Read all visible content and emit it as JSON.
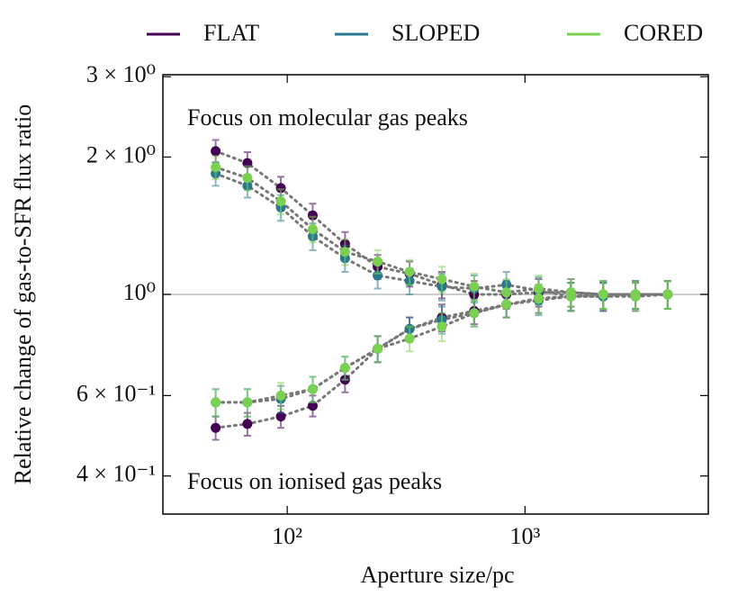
{
  "chart_data": {
    "type": "scatter",
    "xlabel": "Aperture size/pc",
    "ylabel": "Relative change of gas-to-SFR flux ratio",
    "annotations": [
      "Focus on molecular gas peaks",
      "Focus on ionised gas peaks"
    ],
    "log_x": true,
    "log_y": true,
    "xlim": [
      30,
      5900
    ],
    "ylim": [
      0.33,
      3.03
    ],
    "xticks": [
      {
        "value": 100,
        "label": "10²"
      },
      {
        "value": 1000,
        "label": "10³"
      }
    ],
    "yticks": [
      {
        "value": 0.4,
        "label": "4 × 10⁻¹"
      },
      {
        "value": 0.6,
        "label": "6 × 10⁻¹"
      },
      {
        "value": 1,
        "label": "10⁰"
      },
      {
        "value": 2,
        "label": "2 × 10⁰"
      },
      {
        "value": 3,
        "label": "3 × 10⁰"
      }
    ],
    "hline": 1,
    "legend": "top-outside",
    "x": [
      50,
      68,
      94,
      128,
      175,
      240,
      327,
      447,
      611,
      835,
      1141,
      1560,
      2132,
      2914,
      3982
    ],
    "series": [
      {
        "name": "FLAT",
        "color": "#440154",
        "molecular": {
          "values": [
            2.06,
            1.94,
            1.71,
            1.49,
            1.29,
            1.15,
            1.11,
            1.05,
            1.0,
            1.0,
            1.01,
            1.01,
            1.0,
            1.0,
            1.0
          ],
          "errors": [
            0.12,
            0.11,
            0.1,
            0.09,
            0.08,
            0.07,
            0.07,
            0.07,
            0.07,
            0.07,
            0.07,
            0.07,
            0.07,
            0.07,
            0.07
          ]
        },
        "ionised": {
          "values": [
            0.51,
            0.52,
            0.54,
            0.57,
            0.65,
            0.76,
            0.84,
            0.89,
            0.92,
            0.95,
            0.98,
            0.99,
            0.99,
            0.99,
            1.0
          ],
          "errors": [
            0.03,
            0.03,
            0.03,
            0.03,
            0.04,
            0.05,
            0.05,
            0.06,
            0.06,
            0.06,
            0.07,
            0.07,
            0.07,
            0.07,
            0.07
          ]
        }
      },
      {
        "name": "SLOPED",
        "color": "#2a788e",
        "molecular": {
          "values": [
            1.84,
            1.73,
            1.55,
            1.34,
            1.2,
            1.1,
            1.07,
            1.04,
            1.03,
            1.05,
            1.02,
            0.99,
            1.0,
            1.0,
            1.0
          ],
          "errors": [
            0.11,
            0.1,
            0.1,
            0.09,
            0.08,
            0.07,
            0.07,
            0.07,
            0.07,
            0.07,
            0.07,
            0.07,
            0.07,
            0.07,
            0.07
          ]
        },
        "ionised": {
          "values": [
            0.58,
            0.58,
            0.59,
            0.62,
            0.69,
            0.76,
            0.84,
            0.88,
            0.91,
            0.95,
            0.97,
            0.99,
            0.99,
            1.0,
            1.0
          ],
          "errors": [
            0.04,
            0.04,
            0.04,
            0.04,
            0.04,
            0.05,
            0.05,
            0.06,
            0.06,
            0.06,
            0.07,
            0.07,
            0.07,
            0.07,
            0.07
          ]
        }
      },
      {
        "name": "CORED",
        "color": "#7ad151",
        "molecular": {
          "values": [
            1.9,
            1.8,
            1.6,
            1.39,
            1.24,
            1.18,
            1.12,
            1.08,
            1.04,
            1.01,
            1.03,
            1.01,
            1.0,
            1.0,
            1.0
          ],
          "errors": [
            0.11,
            0.11,
            0.1,
            0.09,
            0.08,
            0.07,
            0.07,
            0.07,
            0.07,
            0.07,
            0.07,
            0.07,
            0.07,
            0.07,
            0.07
          ]
        },
        "ionised": {
          "values": [
            0.58,
            0.58,
            0.6,
            0.62,
            0.69,
            0.76,
            0.8,
            0.85,
            0.91,
            0.95,
            0.98,
            0.99,
            1.0,
            0.99,
            1.0
          ],
          "errors": [
            0.04,
            0.04,
            0.04,
            0.04,
            0.04,
            0.05,
            0.05,
            0.06,
            0.06,
            0.06,
            0.07,
            0.07,
            0.07,
            0.07,
            0.07
          ]
        }
      }
    ]
  }
}
